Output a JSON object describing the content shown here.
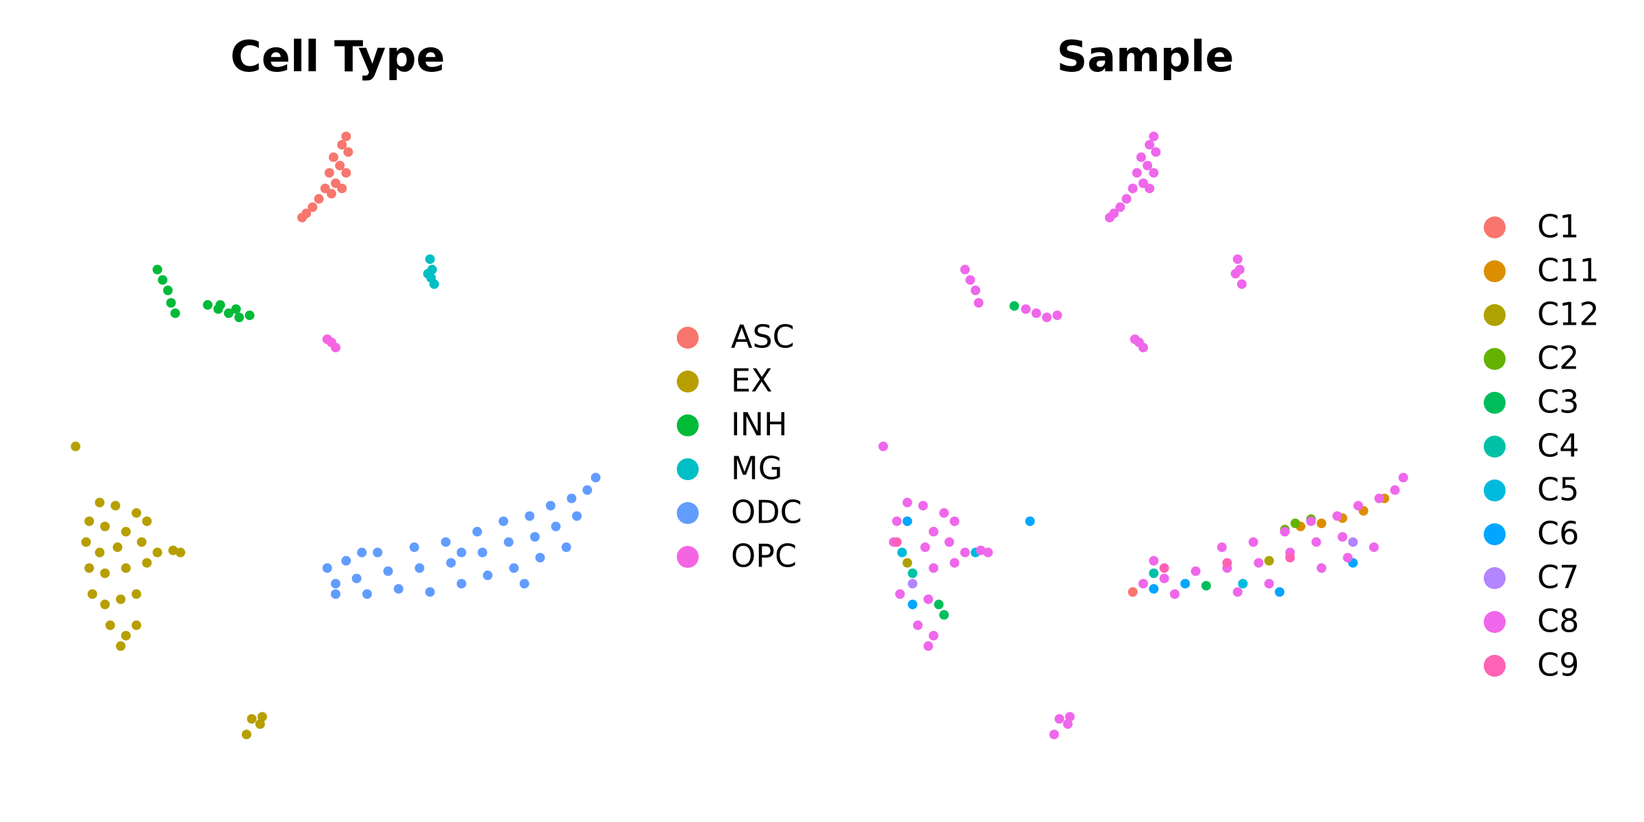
{
  "chart_data": [
    {
      "type": "scatter",
      "title": "Cell Type",
      "xlim": [
        60,
        580
      ],
      "ylim": [
        80,
        680
      ],
      "legend": "right",
      "series": [
        {
          "name": "ASC",
          "color": "#F8766D",
          "x": [
            330,
            326,
            332,
            318,
            324,
            314,
            330,
            320,
            310,
            326,
            304,
            298,
            292,
            288,
            316
          ],
          "y": [
            670,
            662,
            655,
            650,
            642,
            635,
            635,
            625,
            620,
            620,
            610,
            602,
            596,
            592,
            615
          ]
        },
        {
          "name": "EX",
          "color": "#B79F00",
          "x": [
            72,
            95,
            110,
            130,
            140,
            85,
            100,
            120,
            82,
            95,
            112,
            135,
            85,
            100,
            120,
            140,
            88,
            100,
            115,
            130,
            105,
            120,
            130,
            115,
            165,
            172,
            150,
            240,
            248,
            235,
            250
          ],
          "y": [
            372,
            318,
            315,
            308,
            300,
            300,
            295,
            290,
            280,
            270,
            275,
            280,
            255,
            250,
            255,
            260,
            230,
            220,
            225,
            230,
            200,
            190,
            200,
            180,
            272,
            270,
            270,
            110,
            105,
            95,
            112
          ]
        },
        {
          "name": "INH",
          "color": "#00BA38",
          "x": [
            150,
            155,
            160,
            163,
            167,
            198,
            208,
            218,
            228,
            238,
            225,
            210
          ],
          "y": [
            542,
            532,
            522,
            510,
            500,
            508,
            504,
            500,
            496,
            498,
            504,
            508
          ]
        },
        {
          "name": "MG",
          "color": "#00BFC4",
          "x": [
            410,
            412,
            408,
            414,
            411
          ],
          "y": [
            552,
            542,
            538,
            528,
            534
          ]
        },
        {
          "name": "ODC",
          "color": "#619CFF",
          "x": [
            312,
            320,
            330,
            340,
            350,
            360,
            370,
            380,
            395,
            400,
            410,
            425,
            430,
            440,
            455,
            460,
            465,
            480,
            485,
            490,
            505,
            510,
            515,
            525,
            530,
            540,
            545,
            550,
            560,
            568,
            320,
            345,
            440,
            500
          ],
          "y": [
            255,
            240,
            262,
            245,
            230,
            270,
            252,
            235,
            275,
            255,
            232,
            280,
            260,
            240,
            290,
            270,
            248,
            300,
            280,
            255,
            305,
            285,
            265,
            315,
            295,
            275,
            322,
            305,
            330,
            342,
            230,
            270,
            270,
            240
          ]
        },
        {
          "name": "OPC",
          "color": "#F564E3",
          "x": [
            312,
            316,
            320
          ],
          "y": [
            475,
            472,
            467
          ]
        }
      ]
    },
    {
      "type": "scatter",
      "title": "Sample",
      "xlim": [
        60,
        580
      ],
      "ylim": [
        80,
        680
      ],
      "legend": "right",
      "series": [
        {
          "name": "C1",
          "color": "#F8766D",
          "x": [
            310,
            120
          ],
          "y": [
            232,
            290
          ]
        },
        {
          "name": "C11",
          "color": "#DB8E00",
          "x": [
            530,
            550,
            510,
            490,
            470
          ],
          "y": [
            310,
            322,
            303,
            298,
            295
          ]
        },
        {
          "name": "C12",
          "color": "#AEA200",
          "x": [
            440,
            95
          ],
          "y": [
            262,
            260
          ]
        },
        {
          "name": "C2",
          "color": "#64B200",
          "x": [
            465,
            480,
            455
          ],
          "y": [
            298,
            302,
            292
          ]
        },
        {
          "name": "C3",
          "color": "#00BD5C",
          "x": [
            130,
            125,
            197,
            380
          ],
          "y": [
            210,
            220,
            507,
            238
          ]
        },
        {
          "name": "C4",
          "color": "#00C1A7",
          "x": [
            100,
            330
          ],
          "y": [
            250,
            250
          ]
        },
        {
          "name": "C5",
          "color": "#00BADE",
          "x": [
            90,
            415,
            160
          ],
          "y": [
            270,
            240,
            270
          ]
        },
        {
          "name": "C6",
          "color": "#00A6FF",
          "x": [
            95,
            100,
            330,
            360,
            450,
            520,
            212
          ],
          "y": [
            300,
            220,
            235,
            240,
            232,
            260,
            300
          ]
        },
        {
          "name": "C7",
          "color": "#B385FF",
          "x": [
            520,
            100
          ],
          "y": [
            280,
            240
          ]
        },
        {
          "name": "C8",
          "color": "#EF67EB",
          "x": [
            330,
            326,
            332,
            318,
            324,
            314,
            330,
            320,
            310,
            326,
            304,
            298,
            292,
            288,
            410,
            412,
            408,
            414,
            312,
            316,
            320,
            240,
            248,
            235,
            250,
            72,
            95,
            110,
            130,
            140,
            85,
            120,
            82,
            112,
            135,
            120,
            140,
            88,
            115,
            105,
            120,
            115,
            165,
            172,
            150,
            150,
            155,
            160,
            163,
            208,
            218,
            228,
            238,
            320,
            330,
            340,
            350,
            370,
            395,
            400,
            410,
            425,
            430,
            440,
            455,
            460,
            480,
            485,
            490,
            505,
            510,
            515,
            525,
            540,
            545,
            560,
            568
          ],
          "y": [
            670,
            662,
            655,
            650,
            642,
            635,
            635,
            625,
            620,
            620,
            610,
            602,
            596,
            592,
            552,
            542,
            538,
            528,
            475,
            472,
            467,
            110,
            105,
            95,
            112,
            372,
            318,
            315,
            308,
            300,
            300,
            290,
            280,
            275,
            280,
            255,
            260,
            230,
            225,
            200,
            190,
            180,
            272,
            270,
            270,
            542,
            532,
            522,
            510,
            504,
            500,
            496,
            498,
            240,
            262,
            245,
            230,
            252,
            275,
            255,
            232,
            280,
            260,
            240,
            290,
            270,
            300,
            280,
            255,
            305,
            285,
            265,
            315,
            275,
            322,
            330,
            342
          ]
        },
        {
          "name": "C9",
          "color": "#FF63B6",
          "x": [
            400,
            460,
            340,
            85
          ],
          "y": [
            260,
            265,
            255,
            280
          ]
        }
      ]
    }
  ]
}
